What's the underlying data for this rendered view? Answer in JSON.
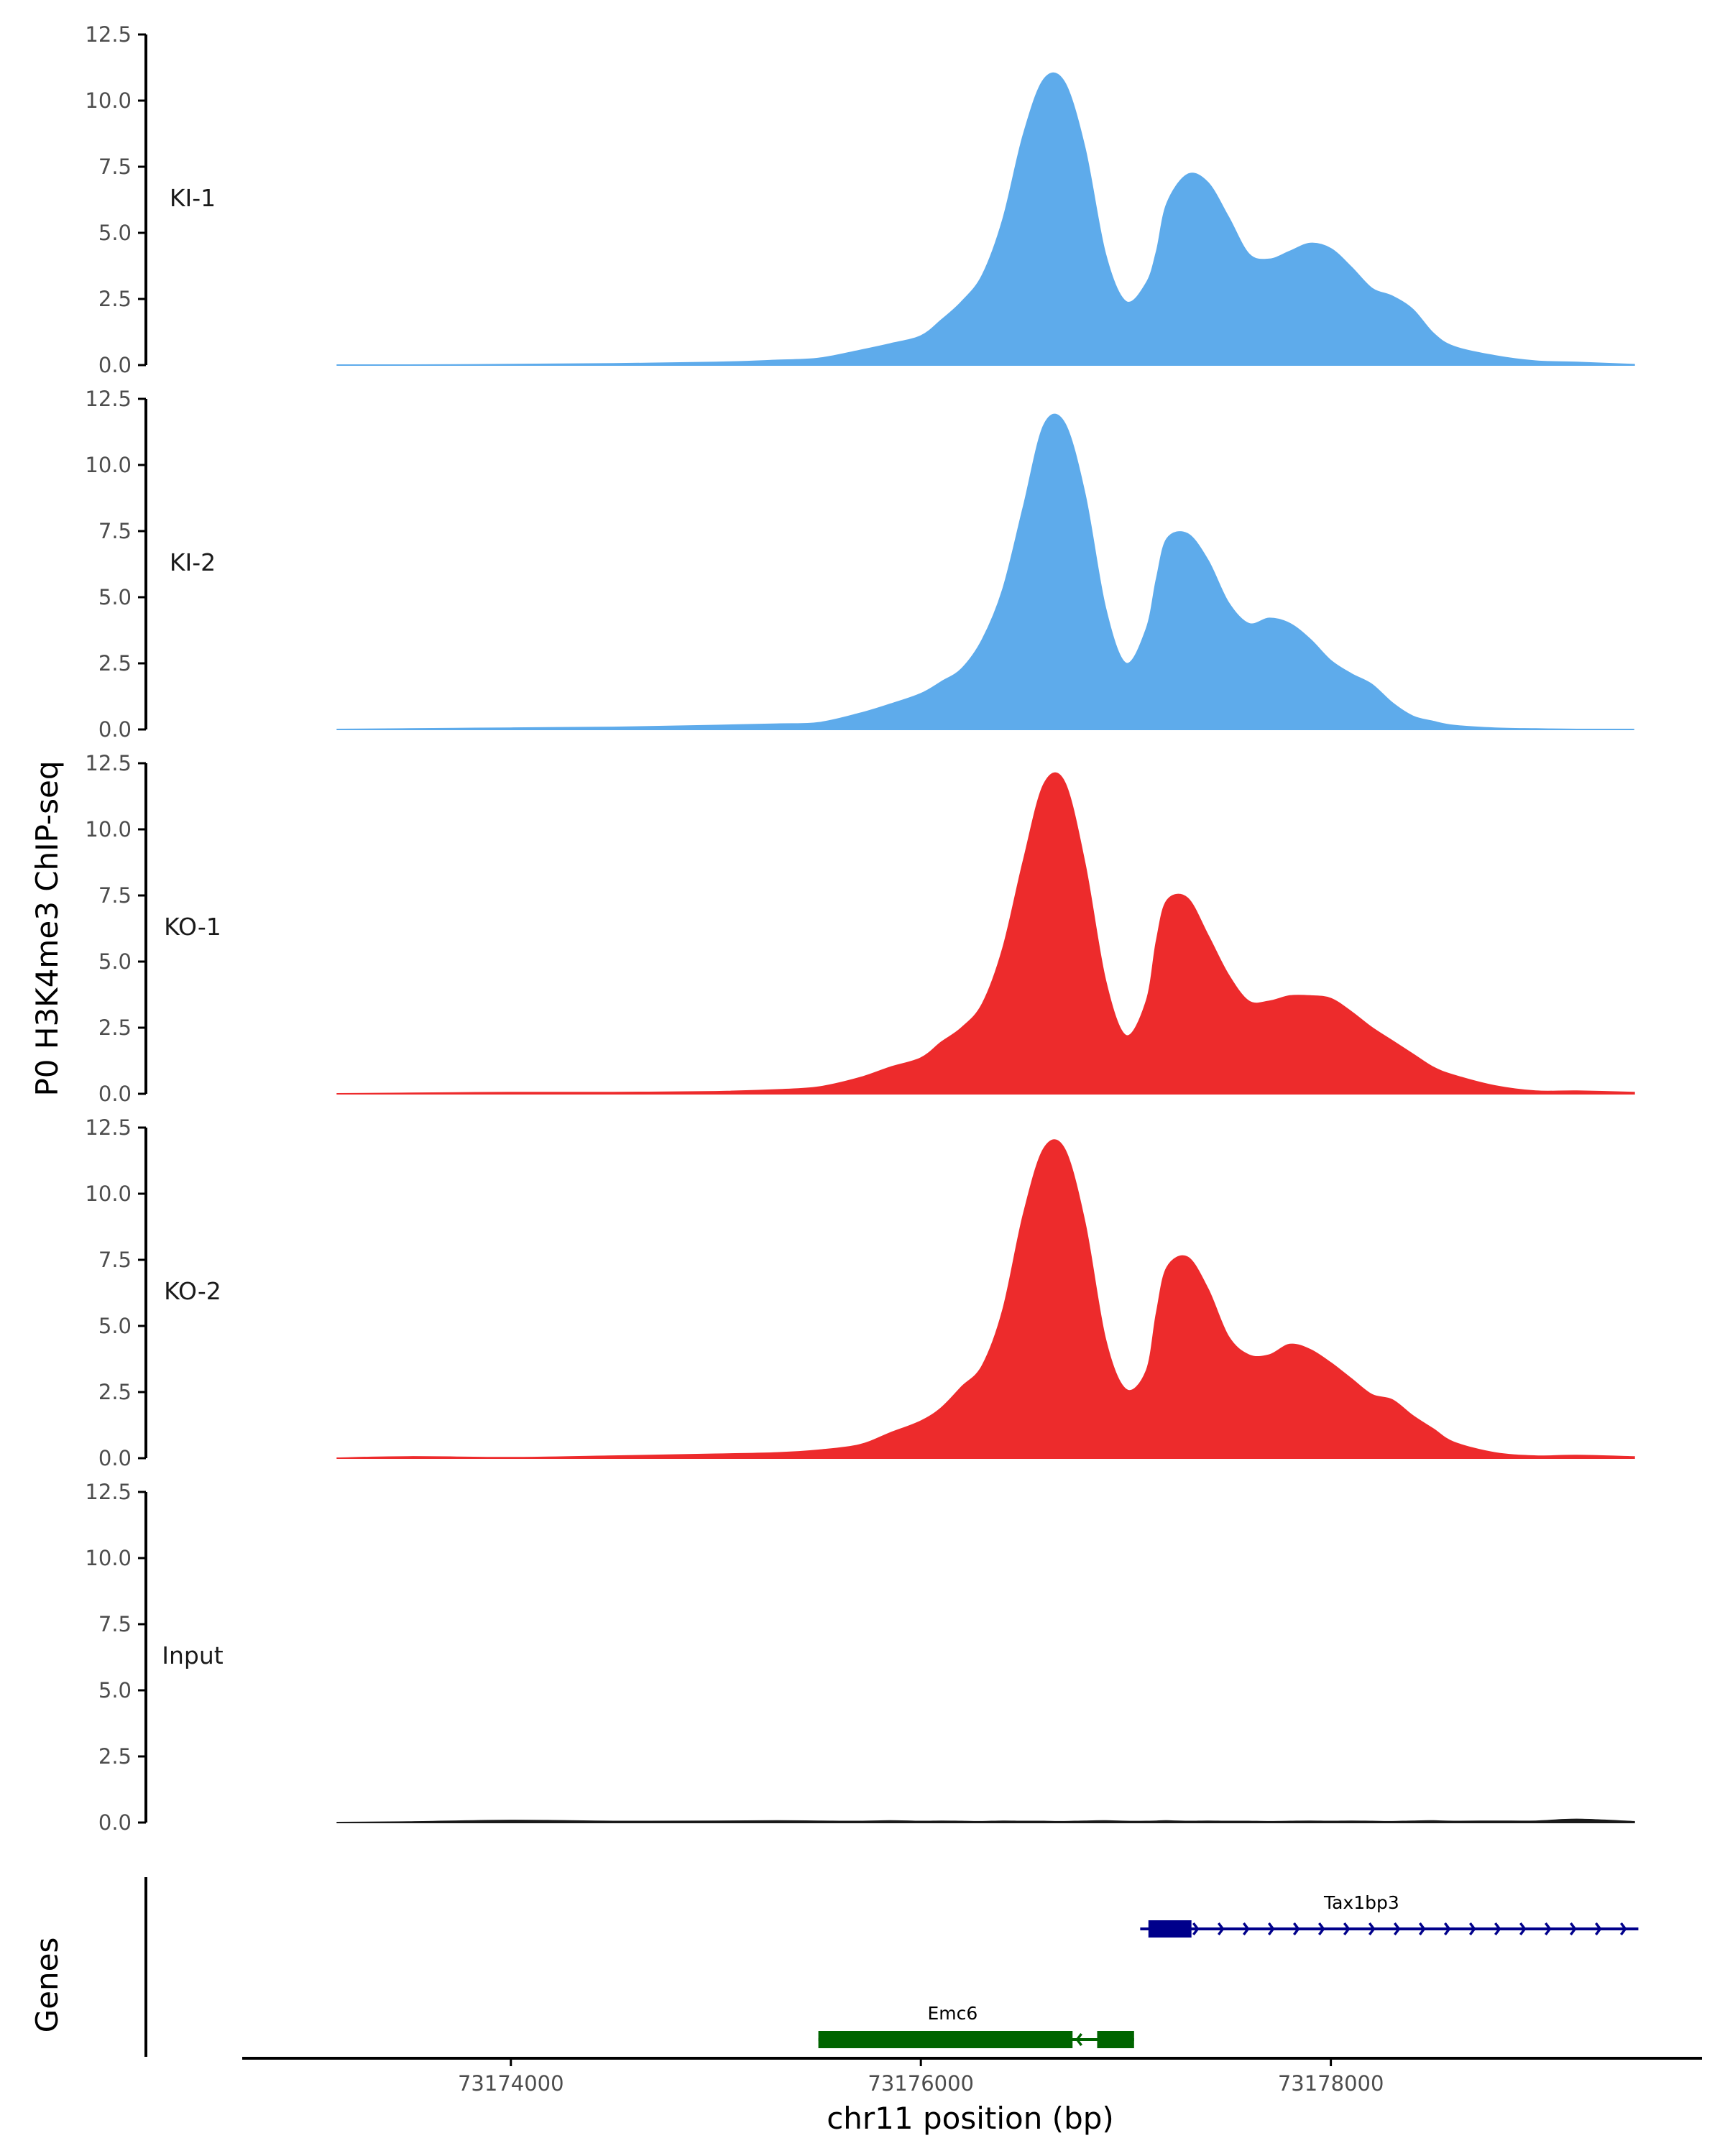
{
  "chart_data": {
    "type": "area",
    "title": "",
    "ylabel": "P0 H3K4me3 ChIP-seq",
    "xlabel": "chr11 position (bp)",
    "xlim": [
      73172700,
      73179800
    ],
    "ylim": [
      0,
      12.5
    ],
    "y_ticks": [
      0,
      2.5,
      5,
      7.5,
      10,
      12.5
    ],
    "y_tick_labels": [
      "0.0",
      "2.5",
      "5.0",
      "7.5",
      "10.0",
      "12.5"
    ],
    "x_ticks": [
      73174000,
      73176000,
      73178000
    ],
    "x_tick_labels": [
      "73174000",
      "73176000",
      "73178000"
    ],
    "x": [
      73173150,
      73173500,
      73174000,
      73174500,
      73175000,
      73175300,
      73175500,
      73175700,
      73175850,
      73176000,
      73176100,
      73176200,
      73176300,
      73176400,
      73176500,
      73176600,
      73176700,
      73176800,
      73176900,
      73177000,
      73177100,
      73177150,
      73177200,
      73177300,
      73177400,
      73177500,
      73177600,
      73177700,
      73177800,
      73177900,
      73178000,
      73178100,
      73178200,
      73178300,
      73178400,
      73178500,
      73178600,
      73178800,
      73179000,
      73179200,
      73179480
    ],
    "series": [
      {
        "name": "KI-1",
        "color": "#5EABEB",
        "values": [
          0,
          0,
          0.02,
          0.05,
          0.1,
          0.18,
          0.25,
          0.55,
          0.8,
          1.1,
          1.7,
          2.4,
          3.4,
          5.5,
          8.7,
          10.8,
          10.7,
          8.2,
          4.2,
          2.4,
          3.1,
          4.3,
          6.1,
          7.2,
          6.9,
          5.6,
          4.2,
          4.0,
          4.3,
          4.6,
          4.4,
          3.7,
          2.9,
          2.6,
          2.1,
          1.2,
          0.7,
          0.35,
          0.15,
          0.1,
          0.02
        ]
      },
      {
        "name": "KI-2",
        "color": "#5EABEB",
        "values": [
          0,
          0.02,
          0.05,
          0.08,
          0.15,
          0.2,
          0.25,
          0.6,
          0.95,
          1.35,
          1.8,
          2.3,
          3.4,
          5.3,
          8.4,
          11.5,
          11.6,
          8.9,
          4.6,
          2.5,
          3.8,
          5.7,
          7.2,
          7.4,
          6.4,
          4.8,
          4.0,
          4.2,
          4.0,
          3.4,
          2.6,
          2.1,
          1.7,
          1.0,
          0.5,
          0.3,
          0.15,
          0.05,
          0.02,
          0,
          0
        ]
      },
      {
        "name": "KO-1",
        "color": "#ED2B2C",
        "values": [
          0,
          0.02,
          0.05,
          0.05,
          0.08,
          0.15,
          0.25,
          0.6,
          1.0,
          1.35,
          1.95,
          2.5,
          3.4,
          5.5,
          8.8,
          11.7,
          11.8,
          8.7,
          4.3,
          2.2,
          3.5,
          5.8,
          7.3,
          7.4,
          6.0,
          4.5,
          3.5,
          3.5,
          3.7,
          3.7,
          3.6,
          3.1,
          2.5,
          2.0,
          1.5,
          1.0,
          0.7,
          0.3,
          0.1,
          0.1,
          0.05
        ]
      },
      {
        "name": "KO-2",
        "color": "#ED2B2C",
        "values": [
          0,
          0.05,
          0.02,
          0.08,
          0.15,
          0.2,
          0.3,
          0.5,
          0.95,
          1.4,
          1.9,
          2.7,
          3.5,
          5.6,
          9.2,
          11.7,
          11.7,
          8.9,
          4.5,
          2.6,
          3.3,
          5.5,
          7.2,
          7.6,
          6.4,
          4.6,
          3.9,
          3.9,
          4.3,
          4.1,
          3.6,
          3.0,
          2.4,
          2.2,
          1.6,
          1.1,
          0.6,
          0.2,
          0.08,
          0.1,
          0.05
        ]
      },
      {
        "name": "Input",
        "color": "#1a1a1a",
        "values": [
          0,
          0.02,
          0.08,
          0.04,
          0.05,
          0.06,
          0.05,
          0.04,
          0.06,
          0.04,
          0.05,
          0.04,
          0.03,
          0.05,
          0.04,
          0.04,
          0.03,
          0.05,
          0.06,
          0.04,
          0.04,
          0.05,
          0.06,
          0.04,
          0.05,
          0.04,
          0.04,
          0.03,
          0.04,
          0.05,
          0.04,
          0.05,
          0.04,
          0.03,
          0.05,
          0.06,
          0.04,
          0.05,
          0.05,
          0.12,
          0.03
        ]
      }
    ],
    "genes": {
      "label": "Genes",
      "items": [
        {
          "name": "Tax1bp3",
          "start": 73177070,
          "end": 73179500,
          "thick_start": 73177110,
          "thick_end": 73177320,
          "strand": "+",
          "color": "#00008B",
          "row": 0
        },
        {
          "name": "Emc6",
          "start": 73175500,
          "end": 73177040,
          "thick_start": 73175500,
          "thick_end": 73177040,
          "strand": "-",
          "exons": [
            [
              73175500,
              73176740
            ],
            [
              73176860,
              73177040
            ]
          ],
          "color": "#006400",
          "row": 1
        }
      ]
    }
  }
}
